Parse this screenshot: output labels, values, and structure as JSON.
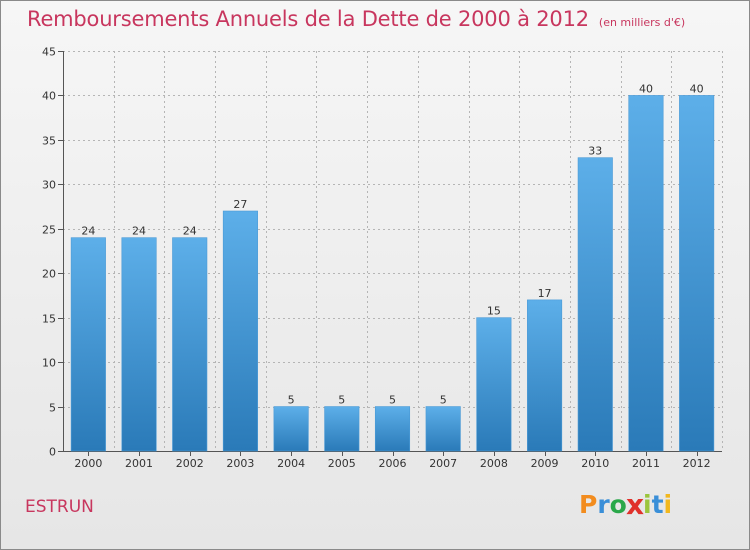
{
  "header": {
    "title": "Remboursements Annuels de la Dette de 2000 à 2012",
    "subtitle": "(en milliers d'€)"
  },
  "footer": {
    "commune": "ESTRUN",
    "brand": "Proxiti"
  },
  "colors": {
    "title": "#c8365e",
    "bar_top": "#5dafe9",
    "bar_bottom": "#2a7ab8",
    "grid": "#b5b5b5"
  },
  "chart_data": {
    "type": "bar",
    "title": "Remboursements Annuels de la Dette de 2000 à 2012",
    "subtitle": "(en milliers d'€)",
    "categories": [
      "2000",
      "2001",
      "2002",
      "2003",
      "2004",
      "2005",
      "2006",
      "2007",
      "2008",
      "2009",
      "2010",
      "2011",
      "2012"
    ],
    "values": [
      24,
      24,
      24,
      27,
      5,
      5,
      5,
      5,
      15,
      17,
      33,
      40,
      40
    ],
    "data_labels": [
      "24",
      "24",
      "24",
      "27",
      "5",
      "5",
      "5",
      "5",
      "15",
      "17",
      "33",
      "40",
      "40"
    ],
    "ylim": [
      0,
      45
    ],
    "yticks": [
      0,
      5,
      10,
      15,
      20,
      25,
      30,
      35,
      40,
      45
    ],
    "ytick_labels": [
      "0",
      "5",
      "10",
      "15",
      "20",
      "25",
      "30",
      "35",
      "40",
      "45"
    ],
    "grid": true,
    "legend": "none"
  }
}
